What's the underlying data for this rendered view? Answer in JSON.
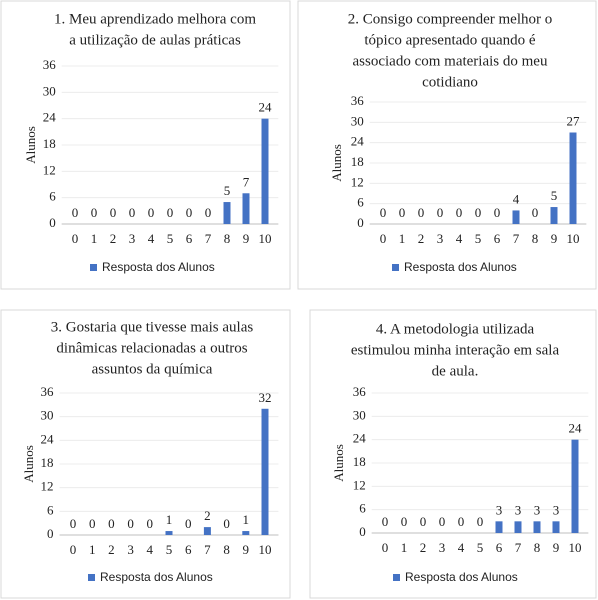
{
  "chart_data": [
    {
      "type": "bar",
      "title": [
        "1. Meu aprendizado melhora com",
        "a utilização de aulas práticas"
      ],
      "y_label": "Alunos",
      "categories": [
        "0",
        "1",
        "2",
        "3",
        "4",
        "5",
        "6",
        "7",
        "8",
        "9",
        "10"
      ],
      "series": [
        {
          "name": "Resposta dos Alunos",
          "color": "#4472c4",
          "values": [
            0,
            0,
            0,
            0,
            0,
            0,
            0,
            0,
            5,
            7,
            24
          ]
        }
      ],
      "ylim": [
        0,
        36
      ],
      "yticks": [
        0,
        6,
        12,
        18,
        24,
        30,
        36
      ],
      "grid": true
    },
    {
      "type": "bar",
      "title": [
        "2. Consigo compreender melhor o",
        "tópico apresentado quando é",
        "associado com materiais do meu",
        "cotidiano"
      ],
      "y_label": "Alunos",
      "categories": [
        "0",
        "1",
        "2",
        "3",
        "4",
        "5",
        "6",
        "7",
        "8",
        "9",
        "10"
      ],
      "series": [
        {
          "name": "Resposta dos Alunos",
          "color": "#4472c4",
          "values": [
            0,
            0,
            0,
            0,
            0,
            0,
            0,
            4,
            0,
            5,
            27
          ]
        }
      ],
      "ylim": [
        0,
        36
      ],
      "yticks": [
        0,
        6,
        12,
        18,
        24,
        30,
        36
      ],
      "grid": true
    },
    {
      "type": "bar",
      "title": [
        "3. Gostaria que tivesse mais aulas",
        "dinâmicas relacionadas a outros",
        "assuntos da química"
      ],
      "y_label": "Alunos",
      "categories": [
        "0",
        "1",
        "2",
        "3",
        "4",
        "5",
        "6",
        "7",
        "8",
        "9",
        "10"
      ],
      "series": [
        {
          "name": "Resposta dos Alunos",
          "color": "#4472c4",
          "values": [
            0,
            0,
            0,
            0,
            0,
            1,
            0,
            2,
            0,
            1,
            32
          ]
        }
      ],
      "ylim": [
        0,
        36
      ],
      "yticks": [
        0,
        6,
        12,
        18,
        24,
        30,
        36
      ],
      "grid": true
    },
    {
      "type": "bar",
      "title": [
        "4. A metodologia utilizada",
        "estimulou minha interação em sala",
        "de aula."
      ],
      "y_label": "Alunos",
      "categories": [
        "0",
        "1",
        "2",
        "3",
        "4",
        "5",
        "6",
        "7",
        "8",
        "9",
        "10"
      ],
      "series": [
        {
          "name": "Resposta dos Alunos",
          "color": "#4472c4",
          "values": [
            0,
            0,
            0,
            0,
            0,
            0,
            3,
            3,
            3,
            3,
            24
          ]
        }
      ],
      "ylim": [
        0,
        36
      ],
      "yticks": [
        0,
        6,
        12,
        18,
        24,
        30,
        36
      ],
      "grid": true
    }
  ]
}
